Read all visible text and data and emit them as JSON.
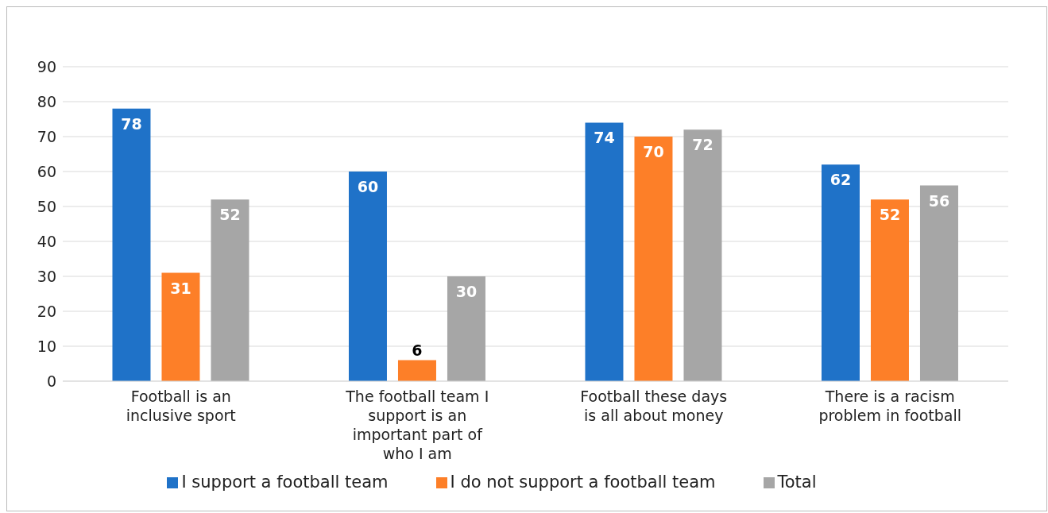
{
  "chart_data": {
    "type": "bar",
    "categories": [
      "Football is an inclusive sport",
      "The football team I support is an important part of who I am",
      "Football these days is all about money",
      "There is a racism problem in football"
    ],
    "series": [
      {
        "name": "I support a football team",
        "color": "#1f72c8",
        "values": [
          78,
          60,
          74,
          62
        ]
      },
      {
        "name": "I do not support a football team",
        "color": "#fd7f28",
        "values": [
          31,
          6,
          70,
          52
        ]
      },
      {
        "name": "Total",
        "color": "#a6a6a6",
        "values": [
          52,
          30,
          72,
          56
        ]
      }
    ],
    "ylim": [
      0,
      90
    ],
    "yticks": [
      0,
      10,
      20,
      30,
      40,
      50,
      60,
      70,
      80,
      90
    ],
    "grid": "y",
    "legend": "bottom",
    "data_labels": true
  }
}
